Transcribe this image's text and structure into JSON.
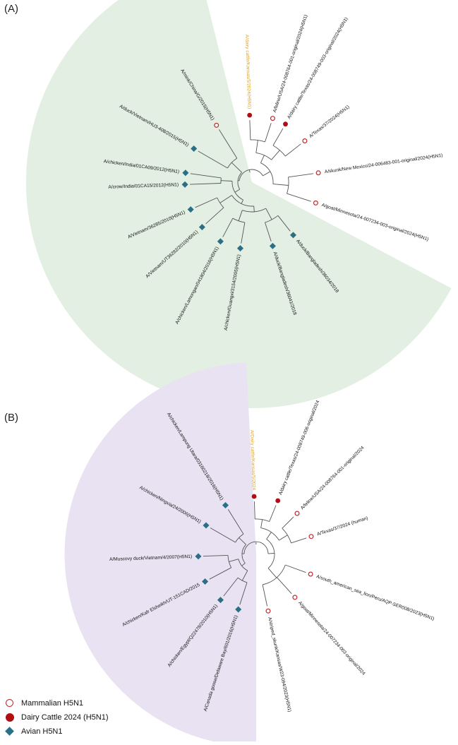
{
  "panels": [
    {
      "label": "(A)",
      "wedge_color": "#e2efe2",
      "tree": {
        "a": {
          "b": {
            "c": {
              "d": [
                {
                  "t": "A/dairy cattle/Kansas/5/2024(H5N1)",
                  "ang": -92,
                  "sym": "dot",
                  "hl": true
                },
                {
                  "t": "A/feline/USA/24-008764-001-original/2024(H5N1)",
                  "ang": -72,
                  "sym": "ring"
                }
              ],
              "e": [
                {
                  "t": "A/dairy cattle/Texas/24-008749-003-original/2024(H5N1)",
                  "ang": -60,
                  "sym": "dot"
                },
                {
                  "t": "A/Texas/37/2024(H5N1)",
                  "ang": -38,
                  "sym": "ring"
                }
              ]
            },
            "f": [
              {
                "t": "A/skunk/New Mexico/24-006483-001-original/2024(H5N1)",
                "ang": -8,
                "sym": "ring"
              },
              {
                "t": "A/goat/Minnesota/24-007234-003-original/2024(H5N1)",
                "ang": 18,
                "sym": "ring"
              }
            ]
          },
          "g": {
            "h": [
              {
                "t": "A/mink/China/G/2015(H5N1)",
                "ang": -122,
                "sym": "ring"
              },
              {
                "t": "A/duck/Vietnam/HU3-408/2015(H5N1)",
                "ang": -150,
                "sym": "diamond"
              }
            ],
            "i": {
              "j": [
                {
                  "t": "A/chicken/India/01CA09/2012(H5N1)",
                  "ang": -172,
                  "sym": "diamond"
                },
                {
                  "t": "A/crow/India/01CA15/2012(H5N1)",
                  "ang": 178,
                  "sym": "diamond"
                }
              ],
              "k": {
                "l": [
                  {
                    "t": "A/Vietnam/36285/2010(H5N1)",
                    "ang": 156,
                    "sym": "diamond"
                  },
                  {
                    "t": "A/Vietnam/UT36282/2010(H5N1)",
                    "ang": 138,
                    "sym": "diamond"
                  }
                ],
                "m": {
                  "n": [
                    {
                      "t": "A/chicken/Lamongan/041804/2016(H5N1)",
                      "ang": 118,
                      "sym": "diamond"
                    },
                    {
                      "t": "A/chicken/Guangxi/3154/2005(H5N1)",
                      "ang": 100,
                      "sym": "diamond"
                    }
                  ],
                  "o": [
                    {
                      "t": "A/duck/Bangladesh/36041/2018",
                      "ang": 72,
                      "sym": "diamond"
                    },
                    {
                      "t": "A/duck/Bangladesh/36034/2018",
                      "ang": 52,
                      "sym": "diamond"
                    }
                  ]
                }
              }
            }
          }
        }
      }
    },
    {
      "label": "(B)",
      "wedge_color": "#e8e2f2",
      "tree": {
        "a": {
          "b": {
            "c": {
              "d": [
                {
                  "t": "A/Dairy cattle/Kansas/5/2024",
                  "ang": -92,
                  "sym": "dot",
                  "hl": true
                },
                {
                  "t": "A/dairy cattle/Texas/24-008749-006-original/2024",
                  "ang": -68,
                  "sym": "dot"
                }
              ],
              "e": [
                {
                  "t": "A/feline/USA/24-008764-001-original/2024",
                  "ang": -45,
                  "sym": "ring"
                },
                {
                  "t": "A/Texas/37/2024 (human)",
                  "ang": -18,
                  "sym": "ring"
                }
              ]
            },
            "f": [
              {
                "t": "A/south_american_sea_lion/Peru/AQP-SER008/2023(H5N1)",
                "ang": 20,
                "sym": "ring"
              },
              {
                "t": "A/goat/Minnesota/24-007234-003-original/2024",
                "ang": 48,
                "sym": "ring"
              },
              {
                "t": "A/striped_skunk/Kansas/W23-094/2023(H5N1)",
                "ang": 78,
                "sym": "ring"
              }
            ]
          },
          "g": {
            "h": [
              {
                "t": "A/chicken/Lampung Utara/03160218/2016(H5N1)",
                "ang": -122,
                "sym": "diamond"
              },
              {
                "t": "A/chicken/Ningxia/24/2006(H5N1)",
                "ang": -150,
                "sym": "diamond"
              }
            ],
            "i": {
              "j": [
                {
                  "t": "A/Muscovy duck/Vietnam/4/2007(H5N1)",
                  "ang": 178,
                  "sym": "diamond"
                },
                {
                  "t": "A/chicken/Kafr Elsheikh/UT-151CAD/2015",
                  "ang": 152,
                  "sym": "diamond"
                }
              ],
              "k": [
                {
                  "t": "A/chicken/Egypt/Q22478/2010(H5N1)",
                  "ang": 128,
                  "sym": "diamond"
                },
                {
                  "t": "A/Canada goose/Delaware Bay/601/2016(H5N1)",
                  "ang": 108,
                  "sym": "diamond"
                }
              ]
            }
          }
        }
      }
    }
  ],
  "legend": {
    "items": [
      {
        "label": "Mammalian H5N1",
        "sym": "ring"
      },
      {
        "label": "Dairy Cattle 2024 (H5N1)",
        "sym": "dot"
      },
      {
        "label": "Avian H5N1",
        "sym": "diamond"
      }
    ]
  },
  "colors": {
    "ring": "#c0282b",
    "dot": "#b10e14",
    "diamond": "#2b6f86",
    "highlight": "#e0a220",
    "branch": "#555555",
    "label": "#111111"
  }
}
